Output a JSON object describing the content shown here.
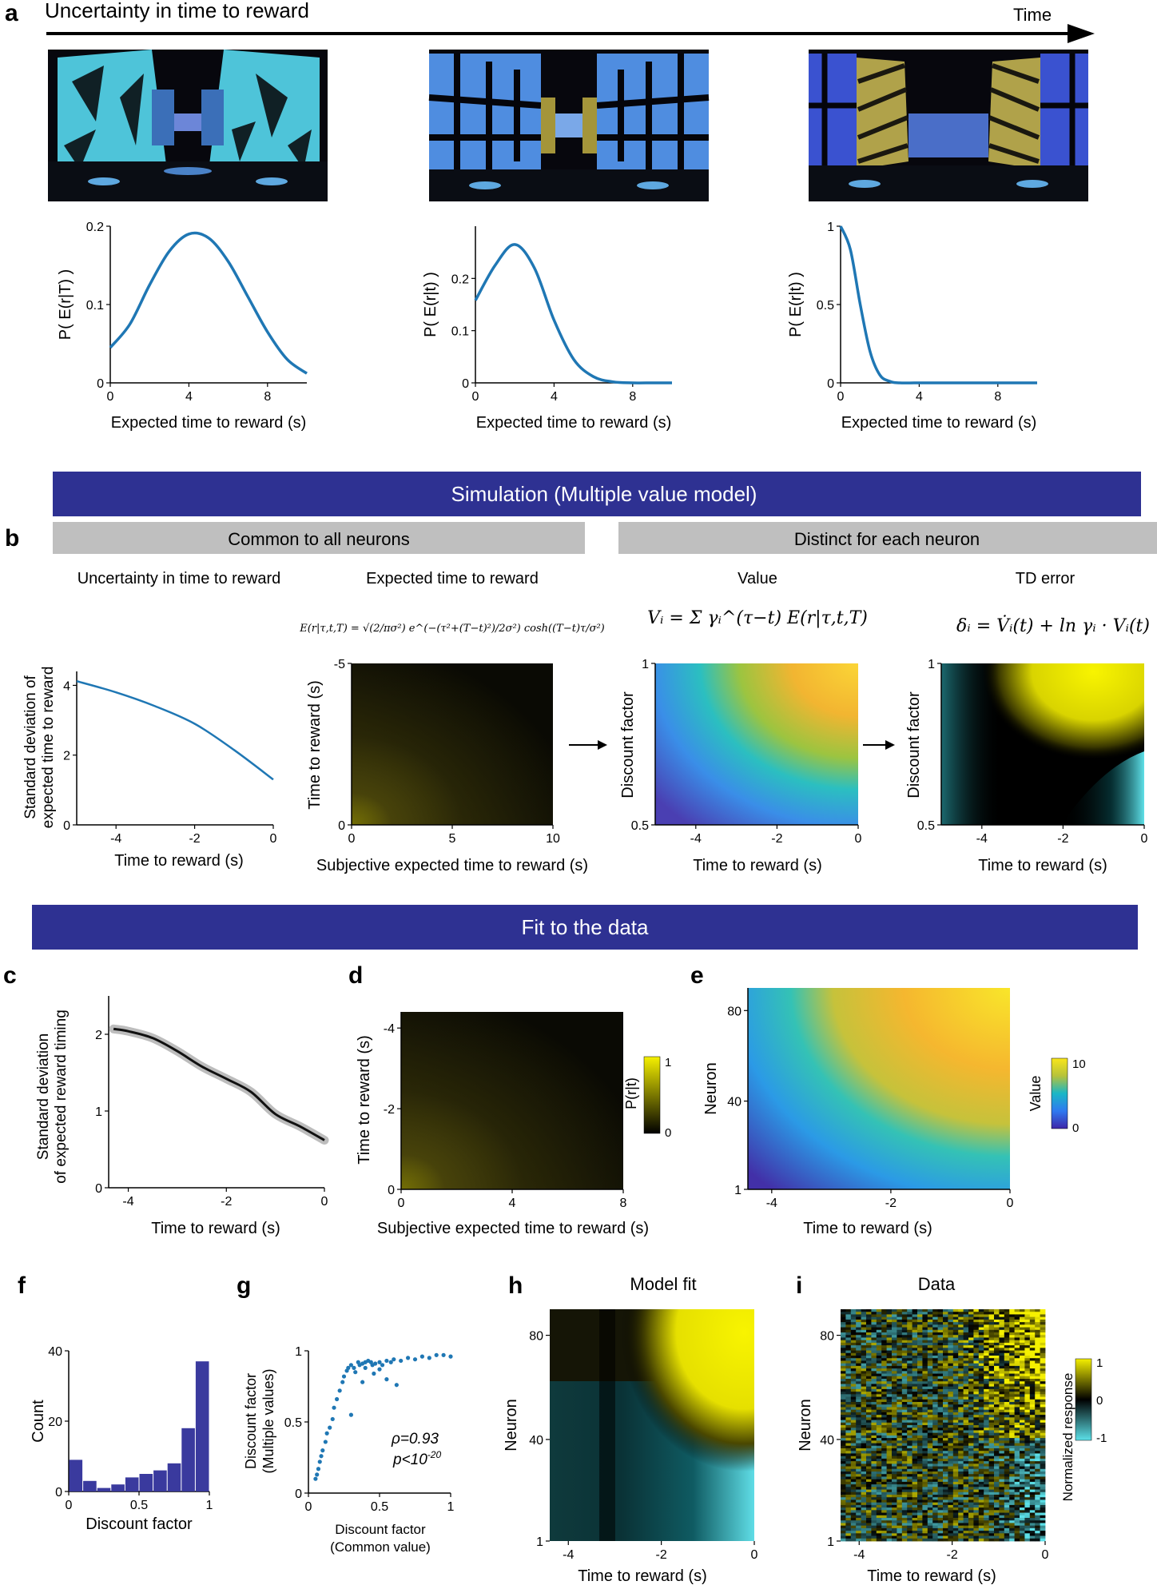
{
  "panel_letters": {
    "a": "a",
    "b": "b",
    "c": "c",
    "d": "d",
    "e": "e",
    "f": "f",
    "g": "g",
    "h": "h",
    "i": "i"
  },
  "panel_a": {
    "title": "Uncertainty in time to reward",
    "time_label": "Time",
    "vr_scenes": [
      "vr-corridor-scene-early",
      "vr-corridor-scene-middle",
      "vr-corridor-scene-late"
    ]
  },
  "banners": {
    "simulation": "Simulation (Multiple value model)",
    "fit": "Fit to the data",
    "common": "Common to all neurons",
    "distinct": "Distinct for each neuron"
  },
  "panel_b": {
    "sub1_title": "Uncertainty in time to reward",
    "sub2_title": "Expected time to reward",
    "sub3_title": "Value",
    "sub4_title": "TD error",
    "eq_expected": "E(r|τ,t,T) = √(2/πσ²) e^(−(τ²+(T−t)²)/2σ²) cosh((T−t)τ/σ²)",
    "eq_value": "Vᵢ = Σ γᵢ^(τ−t) E(r|τ,t,T)",
    "eq_td": "δᵢ = V̇ᵢ(t) + ln γᵢ · Vᵢ(t)",
    "sd_ylabel_1": "Standard deviation of",
    "sd_ylabel_2": "expected time to reward",
    "time_to_reward": "Time to reward (s)",
    "subjective": "Subjective expected time to reward (s)",
    "discount_factor": "Discount factor"
  },
  "panel_c": {
    "ylabel_1": "Standard deviation",
    "ylabel_2": "of  expected reward timing",
    "xlabel": "Time to reward (s)"
  },
  "panel_d": {
    "ylabel": "Time to reward (s)",
    "xlabel": "Subjective expected time to reward (s)",
    "cbar_label": "P(r|t)"
  },
  "panel_e": {
    "ylabel": "Neuron",
    "xlabel": "Time to reward (s)",
    "cbar_label": "Value"
  },
  "panel_f": {
    "ylabel": "Count",
    "xlabel": "Discount factor"
  },
  "panel_g": {
    "ylabel_1": "Discount factor",
    "ylabel_2": "(Multiple values)",
    "xlabel_1": "Discount factor",
    "xlabel_2": "(Common value)",
    "rho": "ρ=0.93",
    "pval": "p<10",
    "pexp": "-20"
  },
  "panel_h": {
    "title": "Model fit",
    "ylabel": "Neuron",
    "xlabel": "Time to reward (s)"
  },
  "panel_i": {
    "title": "Data",
    "ylabel": "Neuron",
    "xlabel": "Time to reward (s)",
    "cbar_label": "Normalized response"
  },
  "colors": {
    "banner": "#2e3192",
    "gray_header": "#bfbfbf",
    "line": "#1f77b4",
    "black_line": "#111111",
    "bar": "#3a3a9e"
  },
  "chart_data": [
    {
      "id": "a1",
      "type": "line",
      "xlabel": "Expected time to reward (s)",
      "ylabel": "P( E(r|T) )",
      "xlim": [
        0,
        10
      ],
      "ylim": [
        0,
        0.2
      ],
      "xticks": [
        "0",
        "4",
        "8"
      ],
      "yticks": [
        "0",
        "0.1",
        "0.2"
      ],
      "x": [
        0,
        1,
        2,
        3,
        4,
        5,
        6,
        7,
        8,
        9,
        10
      ],
      "values": [
        0.045,
        0.075,
        0.125,
        0.168,
        0.19,
        0.185,
        0.155,
        0.11,
        0.065,
        0.03,
        0.012
      ]
    },
    {
      "id": "a2",
      "type": "line",
      "xlabel": "Expected time to reward (s)",
      "ylabel": "P( E(r|t) )",
      "xlim": [
        0,
        10
      ],
      "ylim": [
        0,
        0.3
      ],
      "xticks": [
        "0",
        "4",
        "8"
      ],
      "yticks": [
        "0",
        "0.1",
        "0.2"
      ],
      "x": [
        0,
        1,
        2,
        3,
        4,
        5,
        6,
        7,
        8,
        9,
        10
      ],
      "values": [
        0.158,
        0.225,
        0.265,
        0.22,
        0.12,
        0.045,
        0.012,
        0.002,
        0,
        0,
        0
      ]
    },
    {
      "id": "a3",
      "type": "line",
      "xlabel": "Expected time to reward (s)",
      "ylabel": "P( E(r|t) )",
      "xlim": [
        0,
        10
      ],
      "ylim": [
        0,
        1
      ],
      "xticks": [
        "0",
        "4",
        "8"
      ],
      "yticks": [
        "0",
        "0.5",
        "1"
      ],
      "x": [
        0,
        0.5,
        1,
        1.5,
        2,
        2.5,
        3,
        4,
        6,
        10
      ],
      "values": [
        1,
        0.85,
        0.5,
        0.2,
        0.05,
        0.01,
        0,
        0,
        0,
        0
      ]
    },
    {
      "id": "b1",
      "type": "line",
      "xlabel": "Time to reward (s)",
      "ylabel": "Standard deviation of expected time to reward",
      "xlim": [
        -5,
        0
      ],
      "ylim": [
        0,
        4.4
      ],
      "xticks": [
        "-4",
        "-2",
        "0"
      ],
      "yticks": [
        "0",
        "2",
        "4"
      ],
      "x": [
        -5,
        -4,
        -3,
        -2,
        -1,
        0
      ],
      "values": [
        4.12,
        3.8,
        3.4,
        2.9,
        2.15,
        1.3
      ]
    },
    {
      "id": "b2",
      "type": "heatmap",
      "xlabel": "Subjective expected time to reward (s)",
      "ylabel": "Time to reward (s)",
      "xlim": [
        0,
        10
      ],
      "ylim": [
        0,
        -5
      ],
      "xticks": [
        "0",
        "5",
        "10"
      ],
      "yticks": [
        "0",
        "-5"
      ],
      "colormap": "black-yellow"
    },
    {
      "id": "b3",
      "type": "heatmap",
      "xlabel": "Time to reward (s)",
      "ylabel": "Discount factor",
      "xlim": [
        -5,
        0
      ],
      "ylim": [
        0.5,
        1
      ],
      "xticks": [
        "-4",
        "-2",
        "0"
      ],
      "yticks": [
        "0.5",
        "1"
      ],
      "colormap": "parula"
    },
    {
      "id": "b4",
      "type": "heatmap",
      "xlabel": "Time to reward (s)",
      "ylabel": "Discount factor",
      "xlim": [
        -5,
        0
      ],
      "ylim": [
        0.5,
        1
      ],
      "xticks": [
        "-4",
        "-2",
        "0"
      ],
      "yticks": [
        "0.5",
        "1"
      ],
      "colormap": "cyan-black-yellow"
    },
    {
      "id": "c",
      "type": "line",
      "xlabel": "Time to reward (s)",
      "ylabel": "Standard deviation of expected reward timing",
      "xlim": [
        -4.4,
        0
      ],
      "ylim": [
        0,
        2.5
      ],
      "xticks": [
        "-4",
        "-2",
        "0"
      ],
      "yticks": [
        "0",
        "1",
        "2"
      ],
      "x": [
        -4.3,
        -4,
        -3.5,
        -3,
        -2.5,
        -2,
        -1.5,
        -1,
        -0.5,
        0
      ],
      "values": [
        2.07,
        2.04,
        1.95,
        1.78,
        1.58,
        1.42,
        1.25,
        0.96,
        0.8,
        0.62
      ]
    },
    {
      "id": "d",
      "type": "heatmap",
      "xlabel": "Subjective expected time to reward (s)",
      "ylabel": "Time to reward (s)",
      "xlim": [
        0,
        8
      ],
      "ylim": [
        0,
        -4.4
      ],
      "xticks": [
        "0",
        "4",
        "8"
      ],
      "yticks": [
        "0",
        "-2",
        "-4"
      ],
      "cbar_ticks": [
        "0",
        "1"
      ],
      "colormap": "black-yellow"
    },
    {
      "id": "e",
      "type": "heatmap",
      "xlabel": "Time to reward (s)",
      "ylabel": "Neuron",
      "xlim": [
        -4.4,
        0
      ],
      "ylim": [
        1,
        90
      ],
      "xticks": [
        "-4",
        "-2",
        "0"
      ],
      "yticks": [
        "1",
        "40",
        "80"
      ],
      "cbar_ticks": [
        "0",
        "10"
      ],
      "colormap": "parula"
    },
    {
      "id": "f",
      "type": "bar",
      "xlabel": "Discount factor",
      "ylabel": "Count",
      "ylim": [
        0,
        40
      ],
      "xticks": [
        "0",
        "0.5",
        "1"
      ],
      "yticks": [
        "0",
        "20",
        "40"
      ],
      "categories": [
        "0.05",
        "0.15",
        "0.25",
        "0.35",
        "0.45",
        "0.55",
        "0.65",
        "0.75",
        "0.85",
        "0.95"
      ],
      "values": [
        9,
        3,
        1,
        2,
        4,
        5,
        6,
        8,
        18,
        37
      ]
    },
    {
      "id": "g",
      "type": "scatter",
      "xlabel": "Discount factor (Common value)",
      "ylabel": "Discount factor (Multiple values)",
      "xlim": [
        0,
        1
      ],
      "ylim": [
        0,
        1
      ],
      "xticks": [
        "0",
        "0.5",
        "1"
      ],
      "yticks": [
        "0",
        "0.5",
        "1"
      ],
      "x": [
        0.05,
        0.06,
        0.07,
        0.08,
        0.09,
        0.1,
        0.12,
        0.13,
        0.15,
        0.17,
        0.18,
        0.2,
        0.22,
        0.24,
        0.25,
        0.27,
        0.28,
        0.3,
        0.32,
        0.33,
        0.35,
        0.36,
        0.38,
        0.4,
        0.42,
        0.44,
        0.45,
        0.47,
        0.5,
        0.52,
        0.55,
        0.58,
        0.6,
        0.65,
        0.7,
        0.75,
        0.8,
        0.85,
        0.9,
        0.95,
        1.0,
        0.3,
        0.38,
        0.46,
        0.55,
        0.62,
        0.4,
        0.5
      ],
      "values": [
        0.1,
        0.13,
        0.17,
        0.22,
        0.26,
        0.3,
        0.36,
        0.42,
        0.46,
        0.52,
        0.6,
        0.66,
        0.72,
        0.78,
        0.82,
        0.86,
        0.88,
        0.9,
        0.88,
        0.85,
        0.92,
        0.9,
        0.91,
        0.92,
        0.93,
        0.92,
        0.9,
        0.91,
        0.92,
        0.9,
        0.93,
        0.92,
        0.94,
        0.93,
        0.95,
        0.94,
        0.96,
        0.95,
        0.97,
        0.97,
        0.96,
        0.55,
        0.78,
        0.84,
        0.8,
        0.76,
        0.88,
        0.87
      ]
    },
    {
      "id": "h",
      "type": "heatmap",
      "xlabel": "Time to reward (s)",
      "ylabel": "Neuron",
      "xlim": [
        -4.4,
        0
      ],
      "ylim": [
        1,
        90
      ],
      "xticks": [
        "-4",
        "-2",
        "0"
      ],
      "yticks": [
        "1",
        "40",
        "80"
      ],
      "colormap": "cyan-black-yellow"
    },
    {
      "id": "i",
      "type": "heatmap",
      "xlabel": "Time to reward (s)",
      "ylabel": "Neuron",
      "xlim": [
        -4.4,
        0
      ],
      "ylim": [
        1,
        90
      ],
      "xticks": [
        "-4",
        "-2",
        "0"
      ],
      "yticks": [
        "1",
        "40",
        "80"
      ],
      "cbar_ticks": [
        "-1",
        "0",
        "1"
      ],
      "colormap": "cyan-black-yellow"
    }
  ]
}
